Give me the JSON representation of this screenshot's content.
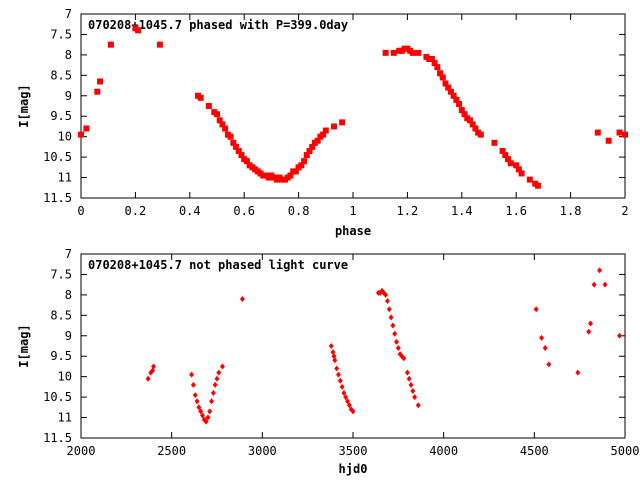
{
  "chart_data": [
    {
      "type": "scatter",
      "title": "070208+1045.7 phased with P=399.0day",
      "xlabel": "phase",
      "ylabel": "I[mag]",
      "xlim": [
        0,
        2
      ],
      "ylim": [
        11.5,
        7
      ],
      "y_inverted": true,
      "grid": false,
      "xticks": [
        0,
        0.2,
        0.4,
        0.6,
        0.8,
        1,
        1.2,
        1.4,
        1.6,
        1.8,
        2
      ],
      "xtick_labels": [
        "0",
        "0.2",
        "0.4",
        "0.6",
        "0.8",
        "1",
        "1.2",
        "1.4",
        "1.6",
        "1.8",
        "2"
      ],
      "yticks": [
        7,
        7.5,
        8,
        8.5,
        9,
        9.5,
        10,
        10.5,
        11,
        11.5
      ],
      "ytick_labels": [
        "7",
        "7.5",
        "8",
        "8.5",
        "9",
        "9.5",
        "10",
        "10.5",
        "11",
        "11.5"
      ],
      "marker_color": "#ff0000",
      "marker": "square",
      "series": [
        {
          "x": [
            0.0,
            0.02,
            0.06,
            0.07,
            0.11,
            0.2,
            0.21,
            0.29,
            0.43,
            0.44,
            0.47,
            0.49,
            0.5,
            0.51,
            0.52,
            0.53,
            0.54,
            0.55,
            0.56,
            0.57,
            0.58,
            0.59,
            0.6,
            0.61,
            0.62,
            0.63,
            0.64,
            0.65,
            0.66,
            0.67,
            0.68,
            0.69,
            0.7,
            0.71,
            0.72,
            0.73,
            0.74,
            0.75,
            0.76,
            0.77,
            0.78,
            0.79,
            0.8,
            0.81,
            0.82,
            0.83,
            0.84,
            0.85,
            0.86,
            0.87,
            0.88,
            0.89,
            0.9,
            0.93,
            0.96,
            1.12,
            1.15,
            1.17,
            1.18,
            1.19,
            1.2,
            1.21,
            1.22,
            1.24,
            1.27,
            1.28,
            1.29,
            1.3,
            1.31,
            1.32,
            1.33,
            1.34,
            1.35,
            1.36,
            1.37,
            1.38,
            1.39,
            1.4,
            1.41,
            1.42,
            1.43,
            1.44,
            1.45,
            1.46,
            1.47,
            1.52,
            1.55,
            1.56,
            1.57,
            1.58,
            1.6,
            1.61,
            1.62,
            1.65,
            1.67,
            1.68,
            1.9,
            1.94,
            1.98,
            2.0
          ],
          "y": [
            9.95,
            9.8,
            8.9,
            8.65,
            7.75,
            7.35,
            7.4,
            7.75,
            9.0,
            9.05,
            9.25,
            9.4,
            9.45,
            9.6,
            9.7,
            9.8,
            9.95,
            10.0,
            10.15,
            10.25,
            10.35,
            10.45,
            10.55,
            10.6,
            10.7,
            10.75,
            10.8,
            10.85,
            10.9,
            10.95,
            10.95,
            11.0,
            10.95,
            11.0,
            11.05,
            11.0,
            11.05,
            11.05,
            11.0,
            10.95,
            10.85,
            10.85,
            10.75,
            10.7,
            10.6,
            10.45,
            10.35,
            10.25,
            10.15,
            10.1,
            10.0,
            9.95,
            9.85,
            9.75,
            9.65,
            7.95,
            7.95,
            7.9,
            7.9,
            7.85,
            7.85,
            7.9,
            7.95,
            7.95,
            8.05,
            8.1,
            8.1,
            8.2,
            8.3,
            8.45,
            8.55,
            8.7,
            8.8,
            8.9,
            9.0,
            9.1,
            9.2,
            9.35,
            9.45,
            9.55,
            9.6,
            9.7,
            9.8,
            9.9,
            9.95,
            10.15,
            10.35,
            10.45,
            10.55,
            10.65,
            10.7,
            10.8,
            10.9,
            11.05,
            11.15,
            11.2,
            9.9,
            10.1,
            9.9,
            9.95
          ]
        }
      ]
    },
    {
      "type": "scatter",
      "title": "070208+1045.7 not phased light curve",
      "xlabel": "hjd0",
      "ylabel": "I[mag]",
      "xlim": [
        2000,
        5000
      ],
      "ylim": [
        11.5,
        7
      ],
      "y_inverted": true,
      "grid": false,
      "xticks": [
        2000,
        2500,
        3000,
        3500,
        4000,
        4500,
        5000
      ],
      "xtick_labels": [
        "2000",
        "2500",
        "3000",
        "3500",
        "4000",
        "4500",
        "5000"
      ],
      "yticks": [
        7,
        7.5,
        8,
        8.5,
        9,
        9.5,
        10,
        10.5,
        11,
        11.5
      ],
      "ytick_labels": [
        "7",
        "7.5",
        "8",
        "8.5",
        "9",
        "9.5",
        "10",
        "10.5",
        "11",
        "11.5"
      ],
      "marker_color": "#ff0000",
      "marker": "diamond",
      "series": [
        {
          "x": [
            2370,
            2385,
            2395,
            2400,
            2610,
            2620,
            2630,
            2640,
            2650,
            2660,
            2670,
            2680,
            2690,
            2700,
            2710,
            2720,
            2730,
            2740,
            2750,
            2760,
            2780,
            2890,
            3380,
            3390,
            3395,
            3400,
            3410,
            3420,
            3430,
            3440,
            3450,
            3460,
            3470,
            3480,
            3490,
            3500,
            3640,
            3650,
            3660,
            3670,
            3680,
            3690,
            3700,
            3710,
            3720,
            3730,
            3740,
            3750,
            3760,
            3770,
            3780,
            3800,
            3810,
            3820,
            3830,
            3840,
            3860,
            4510,
            4540,
            4560,
            4580,
            4740,
            4800,
            4810,
            4830,
            4860,
            4890,
            4970
          ],
          "y": [
            10.05,
            9.9,
            9.85,
            9.75,
            9.95,
            10.2,
            10.45,
            10.6,
            10.75,
            10.85,
            10.95,
            11.05,
            11.1,
            11.0,
            10.85,
            10.6,
            10.4,
            10.2,
            10.05,
            9.9,
            9.75,
            8.1,
            9.25,
            9.4,
            9.5,
            9.6,
            9.8,
            9.95,
            10.1,
            10.25,
            10.4,
            10.5,
            10.6,
            10.7,
            10.8,
            10.85,
            7.95,
            7.95,
            7.9,
            7.95,
            8.0,
            8.15,
            8.35,
            8.55,
            8.75,
            8.95,
            9.15,
            9.3,
            9.45,
            9.5,
            9.55,
            9.9,
            10.05,
            10.2,
            10.35,
            10.5,
            10.7,
            8.35,
            9.05,
            9.3,
            9.7,
            9.9,
            8.9,
            8.7,
            7.75,
            7.4,
            7.75,
            9.0
          ]
        }
      ]
    }
  ]
}
